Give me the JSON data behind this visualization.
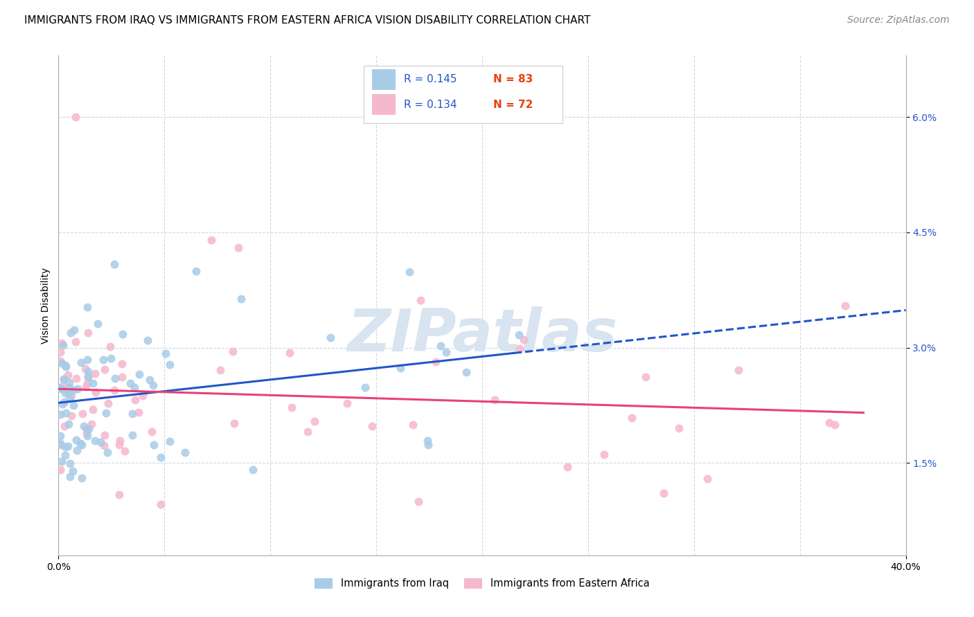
{
  "title": "IMMIGRANTS FROM IRAQ VS IMMIGRANTS FROM EASTERN AFRICA VISION DISABILITY CORRELATION CHART",
  "source": "Source: ZipAtlas.com",
  "ylabel": "Vision Disability",
  "xlim": [
    0.0,
    0.4
  ],
  "ylim": [
    0.003,
    0.068
  ],
  "yticks": [
    0.015,
    0.03,
    0.045,
    0.06
  ],
  "ytick_labels": [
    "1.5%",
    "3.0%",
    "4.5%",
    "6.0%"
  ],
  "xtick_labels": [
    "0.0%",
    "40.0%"
  ],
  "xticks": [
    0.0,
    0.4
  ],
  "legend_r1": "R = 0.145",
  "legend_n1": "N = 83",
  "legend_r2": "R = 0.134",
  "legend_n2": "N = 72",
  "color_iraq": "#a8cce8",
  "color_africa": "#f5b8cc",
  "color_iraq_line": "#2255cc",
  "color_africa_line": "#e8407a",
  "color_r_text": "#2255cc",
  "color_n_text": "#e84010",
  "color_ytick": "#2255cc",
  "watermark_color": "#d8e4f0",
  "title_fontsize": 11,
  "source_fontsize": 10,
  "legend_box_color": "#cccccc"
}
